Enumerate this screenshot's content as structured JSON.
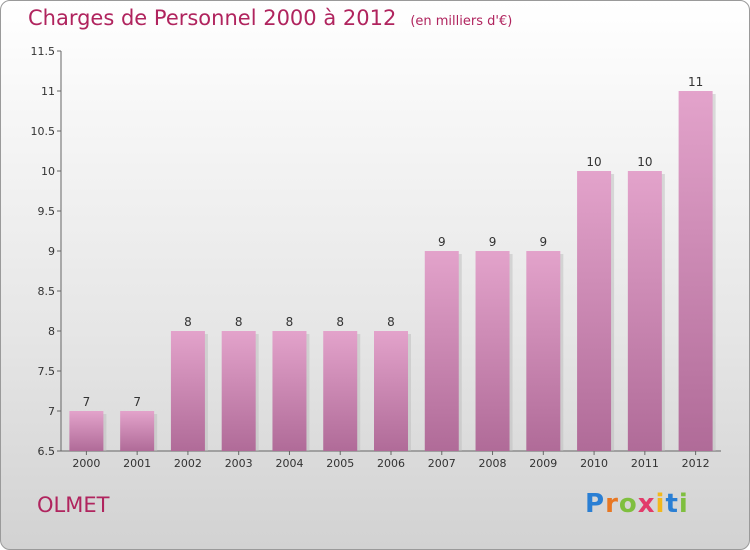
{
  "header": {
    "title": "Charges de Personnel 2000 à 2012",
    "subtitle": "(en milliers d'€)"
  },
  "footer": {
    "commune": "OLMET",
    "logo_text": "Proxiti",
    "logo_letters": [
      {
        "ch": "P",
        "color": "#2a7fd4"
      },
      {
        "ch": "r",
        "color": "#e87722"
      },
      {
        "ch": "o",
        "color": "#7fbf3f"
      },
      {
        "ch": "x",
        "color": "#e23b6a"
      },
      {
        "ch": "i",
        "color": "#f2b81b"
      },
      {
        "ch": "t",
        "color": "#2a7fd4"
      },
      {
        "ch": "i",
        "color": "#7fbf3f"
      }
    ]
  },
  "colors": {
    "bar": "#e3a3cb",
    "bar_dark": "#b06b98",
    "text": "#b0245e"
  },
  "chart_data": {
    "type": "bar",
    "categories": [
      "2000",
      "2001",
      "2002",
      "2003",
      "2004",
      "2005",
      "2006",
      "2007",
      "2008",
      "2009",
      "2010",
      "2011",
      "2012"
    ],
    "values": [
      7,
      7,
      8,
      8,
      8,
      8,
      8,
      9,
      9,
      9,
      10,
      10,
      11
    ],
    "value_labels": [
      "7",
      "7",
      "8",
      "8",
      "8",
      "8",
      "8",
      "9",
      "9",
      "9",
      "10",
      "10",
      "11"
    ],
    "ylim": [
      6.5,
      11.5
    ],
    "yticks": [
      "6.5",
      "7",
      "7.5",
      "8",
      "8.5",
      "9",
      "9.5",
      "10",
      "10.5",
      "11",
      "11.5"
    ],
    "grid": false
  }
}
